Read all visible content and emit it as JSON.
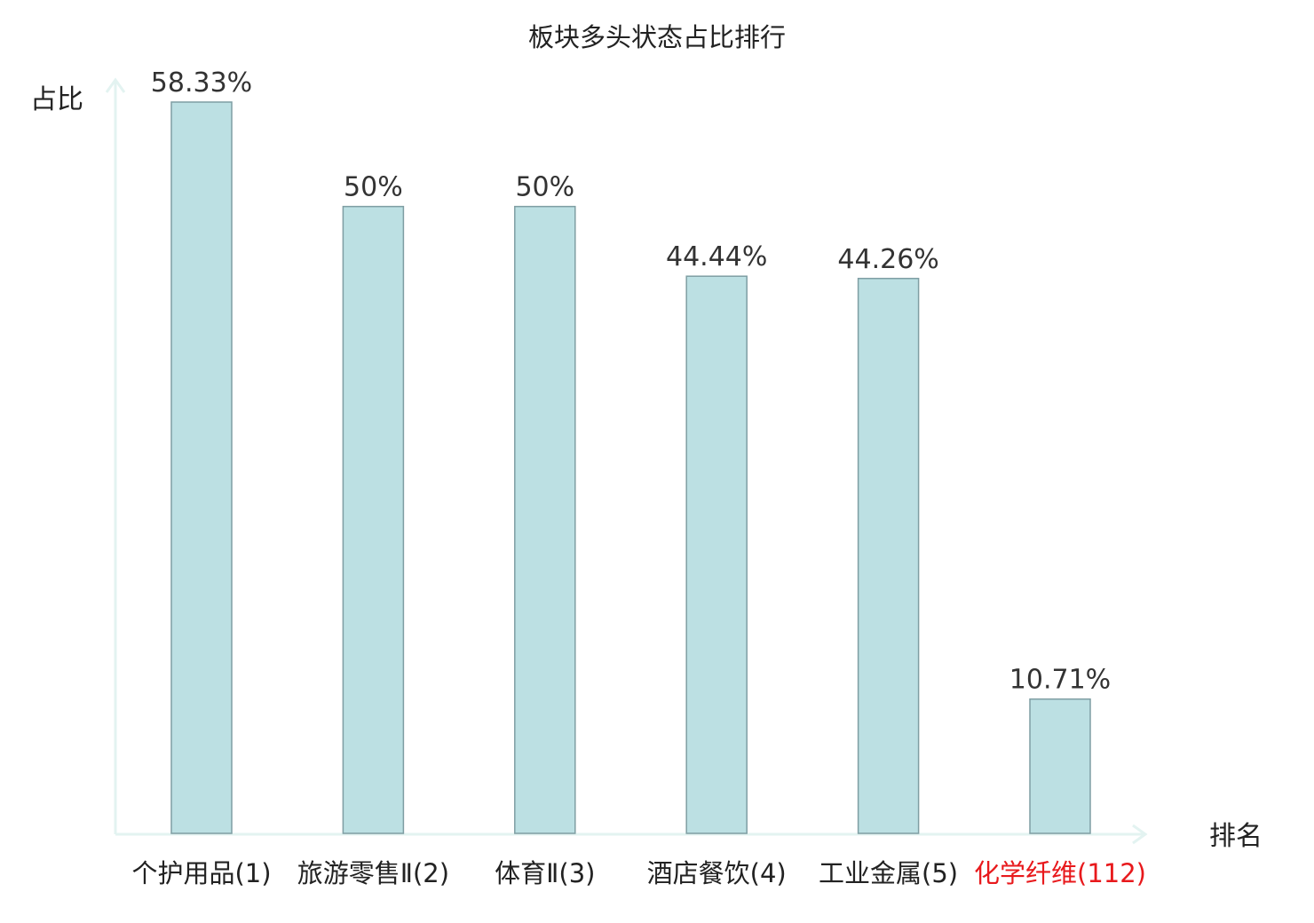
{
  "chart_data": {
    "type": "bar",
    "title": "板块多头状态占比排行",
    "ylabel": "占比",
    "xlabel": "排名",
    "categories": [
      "个护用品(1)",
      "旅游零售Ⅱ(2)",
      "体育Ⅱ(3)",
      "酒店餐饮(4)",
      "工业金属(5)",
      "化学纤维(112)"
    ],
    "values": [
      58.33,
      50,
      50,
      44.44,
      44.26,
      10.71
    ],
    "value_labels": [
      "58.33%",
      "50%",
      "50%",
      "44.44%",
      "44.26%",
      "10.71%"
    ],
    "ylim": [
      0,
      58.33
    ],
    "grid": false,
    "highlight_index": 5,
    "colors": {
      "bar_fill": "#bce0e3",
      "bar_stroke": "#7f9ea3",
      "axis": "#e3f3f1",
      "highlight_text": "#e8191c"
    }
  }
}
